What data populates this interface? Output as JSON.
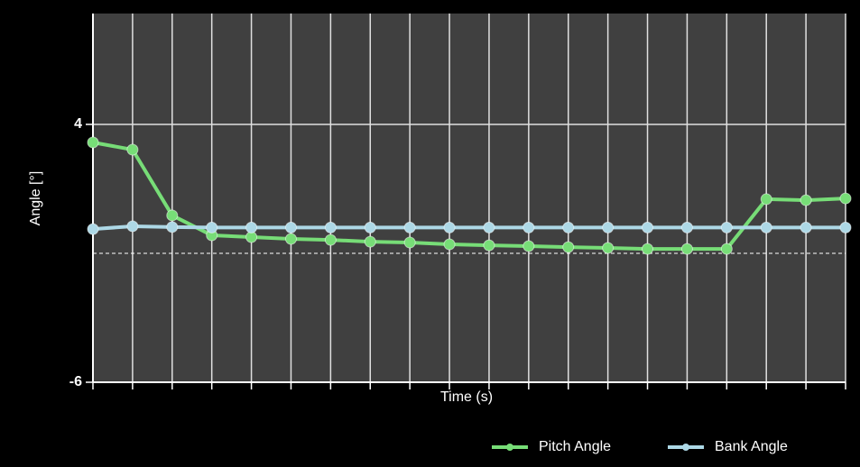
{
  "chart_data": {
    "type": "line",
    "x_label": "Time (s)",
    "y_label": "Angle [°]",
    "categories": [
      null,
      null,
      null,
      null,
      null,
      null,
      null,
      null,
      null,
      null,
      null,
      null,
      null,
      null,
      null,
      null,
      null,
      null,
      null,
      null
    ],
    "series": [
      {
        "name": "Pitch Angle",
        "color": "#77dd77",
        "values": [
          3.3,
          3.02,
          0.47,
          -0.3,
          -0.37,
          -0.44,
          -0.48,
          -0.55,
          -0.58,
          -0.65,
          -0.69,
          -0.72,
          -0.76,
          -0.79,
          -0.83,
          -0.83,
          -0.83,
          1.1,
          1.06,
          1.13
        ]
      },
      {
        "name": "Bank Angle",
        "color": "#add8e6",
        "values": [
          -0.06,
          0.05,
          0.02,
          0,
          0,
          0,
          0,
          0,
          0,
          0,
          0,
          0,
          0,
          0,
          0,
          0,
          0,
          0,
          0,
          0
        ]
      }
    ],
    "ylim": [
      -6,
      8.3
    ],
    "yticks": [
      -6,
      4
    ],
    "reference_line": -1,
    "grid": true,
    "legend": "bottom-right"
  }
}
